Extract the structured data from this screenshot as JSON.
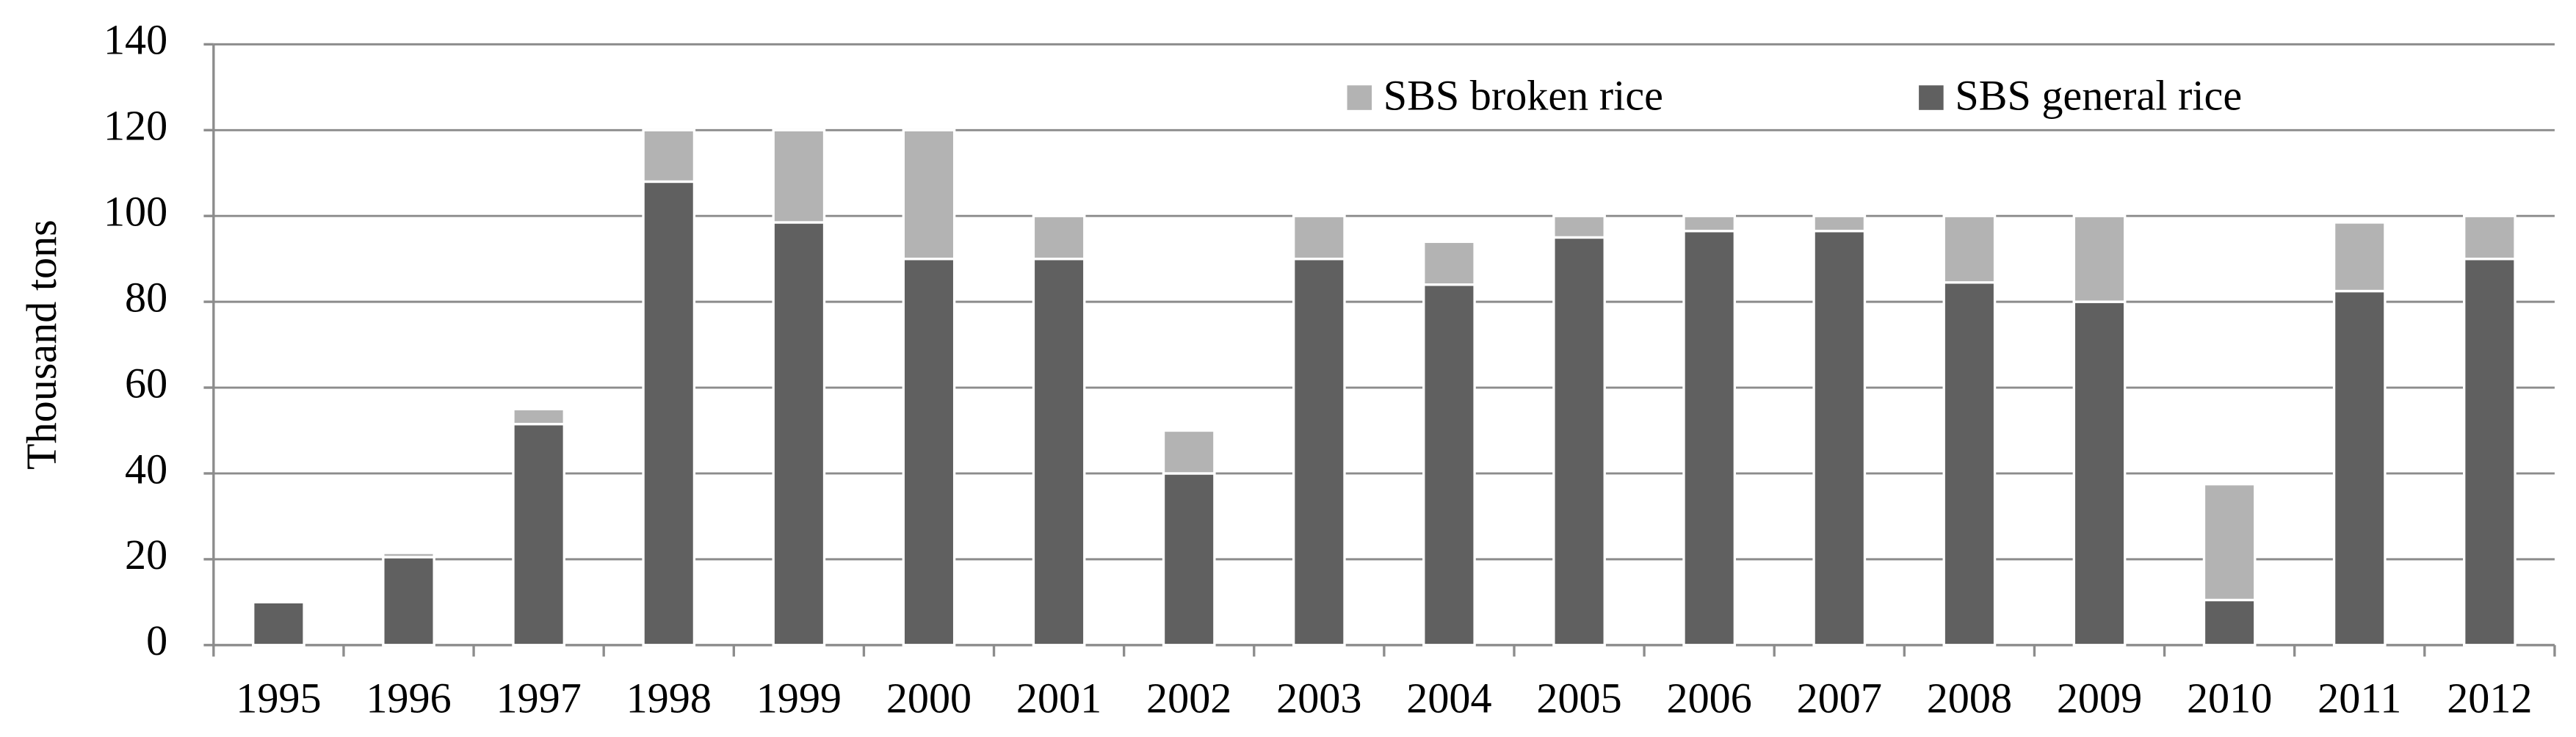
{
  "chart_data": {
    "type": "stacked_bar",
    "y_label": "Thousand tons",
    "categories": [
      "1995",
      "1996",
      "1997",
      "1998",
      "1999",
      "2000",
      "2001",
      "2002",
      "2003",
      "2004",
      "2005",
      "2006",
      "2007",
      "2008",
      "2009",
      "2010",
      "2011",
      "2012"
    ],
    "series": [
      {
        "name": "SBS general rice",
        "color": "#606060",
        "values": [
          10,
          20.5,
          51.5,
          108,
          98.5,
          90,
          90,
          40,
          90,
          84,
          95,
          96.5,
          96.5,
          84.5,
          80,
          10.5,
          82.5,
          90
        ]
      },
      {
        "name": "SBS broken rice",
        "color": "#b3b3b3",
        "values": [
          0.5,
          1,
          3.5,
          12,
          21.5,
          30,
          10,
          10,
          10,
          10,
          5,
          3.5,
          3.5,
          15.5,
          20,
          27,
          16,
          10
        ]
      }
    ],
    "ylim": [
      0,
      140
    ],
    "yticks": [
      0,
      20,
      40,
      60,
      80,
      100,
      120,
      140
    ],
    "grid": true,
    "legend": "top-right"
  }
}
